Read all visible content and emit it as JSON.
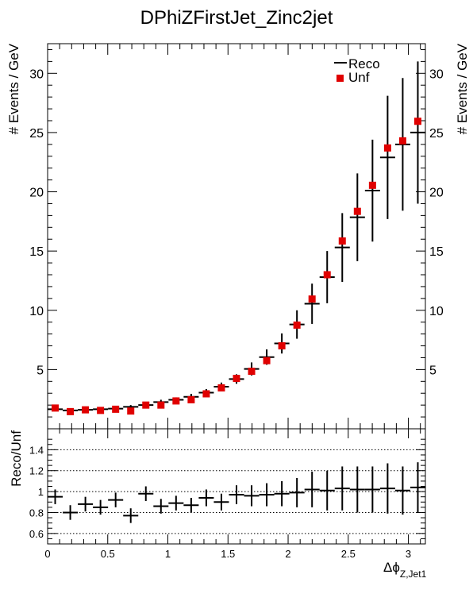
{
  "title": "DPhiZFirstJet_Zinc2jet",
  "chart_data": [
    {
      "type": "scatter",
      "panel": "top",
      "ylabel": "# Events / GeV",
      "ylim": [
        0,
        32.5
      ],
      "xlim": [
        0,
        3.1416
      ],
      "yticks": [
        5,
        10,
        15,
        20,
        25,
        30
      ],
      "ytick_labels": [
        "5",
        "10",
        "15",
        "20",
        "25",
        "30"
      ],
      "legend_placement": "top-right",
      "legend": [
        {
          "name": "Reco",
          "color": "#000000",
          "style": "line"
        },
        {
          "name": "Unf",
          "color": "#e00000",
          "style": "square"
        }
      ],
      "series": [
        {
          "name": "Reco",
          "color": "#000000",
          "x": [
            0.0628,
            0.1885,
            0.3142,
            0.4398,
            0.5655,
            0.6912,
            0.8168,
            0.9425,
            1.0681,
            1.1938,
            1.3195,
            1.4451,
            1.5708,
            1.6965,
            1.8221,
            1.9478,
            2.0735,
            2.1991,
            2.3248,
            2.4504,
            2.5761,
            2.7018,
            2.8274,
            2.9531,
            3.0788
          ],
          "values": [
            1.65,
            1.55,
            1.6,
            1.65,
            1.7,
            1.85,
            2.0,
            2.25,
            2.45,
            2.7,
            3.05,
            3.55,
            4.2,
            5.05,
            6.05,
            7.2,
            8.8,
            10.55,
            12.8,
            15.3,
            17.85,
            20.1,
            22.9,
            24.0,
            25.0
          ],
          "errors": [
            0.15,
            0.15,
            0.15,
            0.15,
            0.15,
            0.15,
            0.15,
            0.2,
            0.2,
            0.25,
            0.3,
            0.35,
            0.4,
            0.55,
            0.65,
            0.85,
            1.2,
            1.7,
            2.2,
            2.9,
            3.7,
            4.3,
            5.2,
            5.6,
            6.0
          ]
        },
        {
          "name": "Unf",
          "color": "#e00000",
          "x": [
            0.0628,
            0.1885,
            0.3142,
            0.4398,
            0.5655,
            0.6912,
            0.8168,
            0.9425,
            1.0681,
            1.1938,
            1.3195,
            1.4451,
            1.5708,
            1.6965,
            1.8221,
            1.9478,
            2.0735,
            2.1991,
            2.3248,
            2.4504,
            2.5761,
            2.7018,
            2.8274,
            2.9531,
            3.0788
          ],
          "values": [
            1.75,
            1.45,
            1.6,
            1.55,
            1.65,
            1.5,
            2.0,
            2.0,
            2.35,
            2.45,
            2.95,
            3.45,
            4.25,
            4.85,
            5.75,
            7.0,
            8.75,
            10.95,
            13.0,
            15.85,
            18.35,
            20.55,
            23.7,
            24.3,
            25.95
          ]
        }
      ]
    },
    {
      "type": "scatter",
      "panel": "bottom",
      "ylabel": "Reco/Unf",
      "xlabel_main": "Δϕ",
      "xlabel_sub": "Z,Jet1",
      "ylim": [
        0.5,
        1.6
      ],
      "xlim": [
        0,
        3.1416
      ],
      "yticks": [
        0.6,
        0.8,
        1.0,
        1.2,
        1.4
      ],
      "ytick_labels": [
        "0.6",
        "0.8",
        "1",
        "1.2",
        "1.4"
      ],
      "xticks": [
        0,
        0.5,
        1,
        1.5,
        2,
        2.5,
        3
      ],
      "xtick_labels": [
        "0",
        "0.5",
        "1",
        "1.5",
        "2",
        "2.5",
        "3"
      ],
      "grid": "horizontal dotted at labeled ticks",
      "series": [
        {
          "name": "Reco/Unf",
          "color": "#000000",
          "x": [
            0.0628,
            0.1885,
            0.3142,
            0.4398,
            0.5655,
            0.6912,
            0.8168,
            0.9425,
            1.0681,
            1.1938,
            1.3195,
            1.4451,
            1.5708,
            1.6965,
            1.8221,
            1.9478,
            2.0735,
            2.1991,
            2.3248,
            2.4504,
            2.5761,
            2.7018,
            2.8274,
            2.9531,
            3.0788
          ],
          "values": [
            0.95,
            0.8,
            0.88,
            0.85,
            0.92,
            0.77,
            0.98,
            0.86,
            0.89,
            0.87,
            0.94,
            0.9,
            0.97,
            0.96,
            0.97,
            0.98,
            0.99,
            1.02,
            1.01,
            1.03,
            1.02,
            1.02,
            1.03,
            1.01,
            1.04
          ],
          "errors": [
            0.07,
            0.07,
            0.07,
            0.07,
            0.07,
            0.07,
            0.07,
            0.07,
            0.07,
            0.07,
            0.08,
            0.08,
            0.09,
            0.1,
            0.11,
            0.12,
            0.14,
            0.17,
            0.19,
            0.21,
            0.22,
            0.22,
            0.24,
            0.23,
            0.24
          ]
        }
      ]
    }
  ]
}
